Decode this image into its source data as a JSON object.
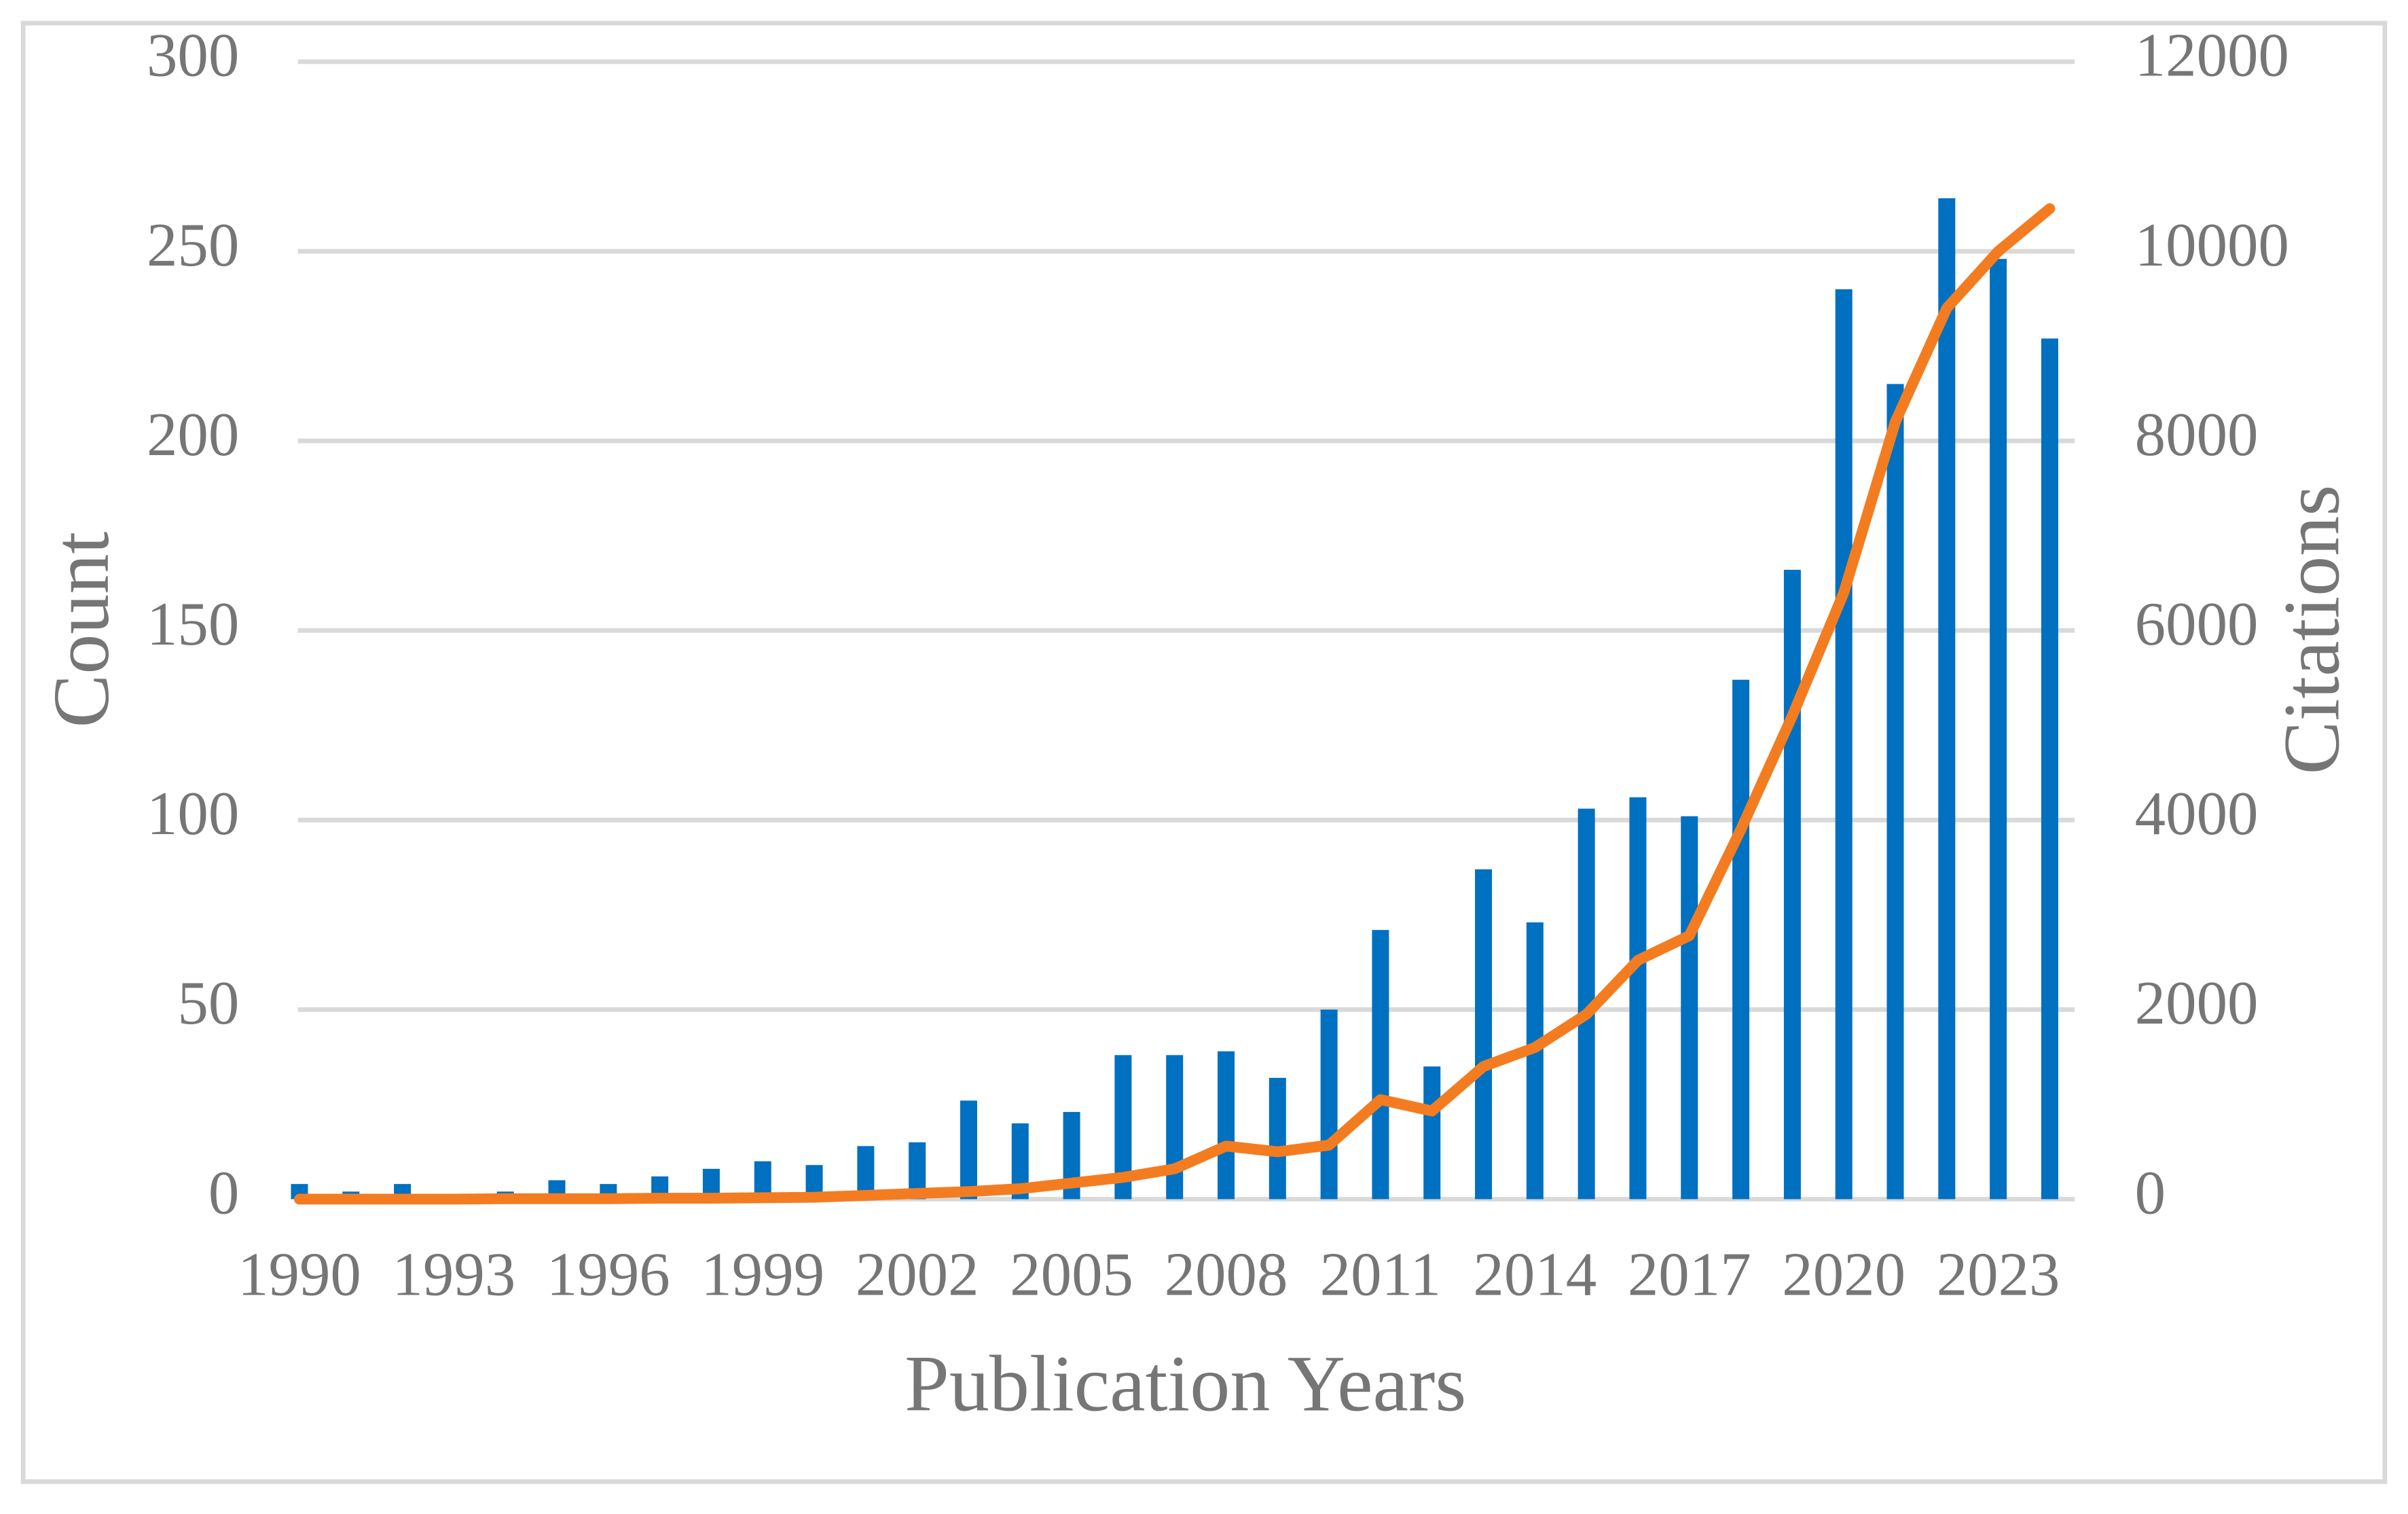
{
  "chart_data": {
    "type": "bar-line",
    "x_label": "Publication Years",
    "y_label": "Count",
    "y2_label": "Citations",
    "categories": [
      "1990",
      null,
      null,
      "1993",
      null,
      null,
      "1996",
      null,
      null,
      "1999",
      null,
      null,
      "2002",
      null,
      null,
      "2005",
      null,
      null,
      "2008",
      null,
      null,
      "2011",
      null,
      null,
      "2014",
      null,
      null,
      "2017",
      null,
      null,
      "2020",
      null,
      null,
      "2023",
      null
    ],
    "series": [
      {
        "type": "bar",
        "color": "#0070c0",
        "values": [
          4,
          2,
          4,
          1,
          2,
          5,
          4,
          6,
          8,
          10,
          9,
          14,
          15,
          26,
          20,
          23,
          38,
          38,
          39,
          32,
          50,
          71,
          35,
          87,
          73,
          103,
          106,
          101,
          137,
          166,
          240,
          215,
          264,
          248,
          227
        ]
      },
      {
        "type": "line",
        "axis": "y2",
        "color": "#f47c20",
        "values": [
          0,
          0,
          0,
          0,
          5,
          5,
          5,
          10,
          10,
          15,
          20,
          40,
          60,
          80,
          110,
          170,
          230,
          320,
          560,
          500,
          570,
          1050,
          930,
          1400,
          1600,
          1950,
          2520,
          2780,
          3900,
          5100,
          6400,
          8200,
          9400,
          10000,
          10450
        ]
      }
    ],
    "ylim": [
      0,
      300
    ],
    "yticks": [
      0,
      50,
      100,
      150,
      200,
      250,
      300
    ],
    "y2lim": [
      0,
      12000
    ],
    "y2ticks": [
      0,
      2000,
      4000,
      6000,
      8000,
      10000,
      12000
    ],
    "grid": true
  }
}
